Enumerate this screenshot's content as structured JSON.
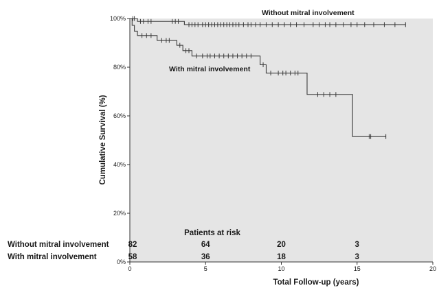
{
  "chart_data": {
    "type": "line",
    "xlabel": "Total Follow-up (years)",
    "ylabel": "Cumulative Survival (%)",
    "xlim": [
      0,
      20
    ],
    "ylim": [
      0,
      100
    ],
    "x_ticks": [
      "0",
      "5",
      "10",
      "15",
      "20"
    ],
    "y_ticks": [
      "0%",
      "20%",
      "40%",
      "60%",
      "80%",
      "100%"
    ],
    "grid": false,
    "series": [
      {
        "name": "Without mitral involvement",
        "color": "#3a3a3a",
        "steps": [
          [
            0,
            100
          ],
          [
            0.5,
            98.8
          ],
          [
            3.6,
            97.5
          ],
          [
            18.2,
            97.5
          ]
        ],
        "censor_x": [
          0.2,
          0.3,
          0.7,
          0.9,
          1.2,
          1.4,
          2.8,
          3.0,
          3.2,
          3.9,
          4.1,
          4.3,
          4.5,
          4.8,
          5.0,
          5.2,
          5.4,
          5.6,
          5.8,
          6.0,
          6.2,
          6.4,
          6.6,
          6.8,
          7.0,
          7.2,
          7.5,
          7.8,
          8.0,
          8.3,
          8.6,
          9.0,
          9.4,
          9.8,
          10.2,
          10.6,
          11.0,
          11.5,
          12.1,
          12.5,
          12.9,
          13.2,
          13.6,
          14.1,
          14.6,
          15.0,
          15.5,
          16.1,
          16.8,
          17.5,
          18.2
        ]
      },
      {
        "name": "With mitral involvement",
        "color": "#3a3a3a",
        "steps": [
          [
            0,
            100
          ],
          [
            0.15,
            97.2
          ],
          [
            0.3,
            94.8
          ],
          [
            0.5,
            93.0
          ],
          [
            1.8,
            91.0
          ],
          [
            3.1,
            89.0
          ],
          [
            3.5,
            86.8
          ],
          [
            4.1,
            84.6
          ],
          [
            8.6,
            81.0
          ],
          [
            9.0,
            77.6
          ],
          [
            11.7,
            68.8
          ],
          [
            14.7,
            51.5
          ],
          [
            16.9,
            51.5
          ]
        ],
        "censor_x": [
          0.8,
          1.1,
          1.4,
          2.1,
          2.4,
          2.6,
          3.3,
          3.7,
          3.9,
          4.4,
          4.8,
          5.1,
          5.3,
          5.6,
          5.9,
          6.2,
          6.5,
          6.8,
          7.1,
          7.4,
          7.7,
          8.0,
          8.8,
          9.3,
          9.8,
          10.1,
          10.3,
          10.6,
          10.9,
          11.1,
          12.4,
          12.8,
          13.2,
          13.6,
          15.8,
          15.9,
          16.9
        ]
      }
    ],
    "annotations": [
      "Without mitral involvement",
      "With mitral involvement"
    ],
    "at_risk": {
      "title": "Patients at risk",
      "rows": [
        {
          "label": "Without mitral involvement",
          "counts": [
            "82",
            "64",
            "20",
            "3"
          ]
        },
        {
          "label": "With mitral involvement",
          "counts": [
            "58",
            "36",
            "18",
            "3"
          ]
        }
      ],
      "at_x": [
        0,
        5,
        10,
        15
      ]
    }
  }
}
